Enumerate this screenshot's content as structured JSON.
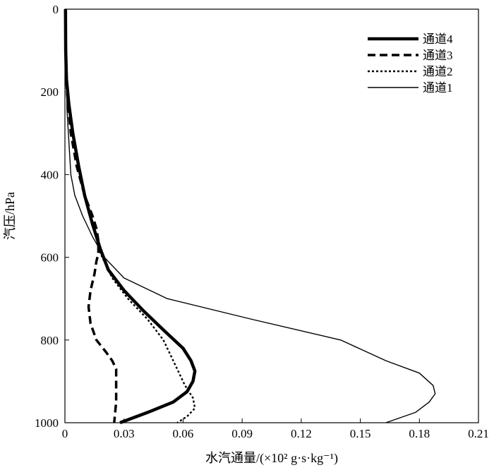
{
  "chart_data": {
    "type": "line",
    "xlabel": "水汽通量/(×10² g·s·kg⁻¹)",
    "ylabel": "汽压/hPa",
    "xlim": [
      0,
      0.21
    ],
    "ylim": [
      0,
      1000
    ],
    "y_inverted": true,
    "x_ticks": [
      "0",
      "0.03",
      "0.06",
      "0.09",
      "0.12",
      "0.15",
      "0.18",
      "0.21"
    ],
    "y_ticks": [
      "0",
      "200",
      "400",
      "600",
      "800",
      "1000"
    ],
    "grid": false,
    "legend": "top-right",
    "series": [
      {
        "name": "通道4",
        "style": "thick-solid",
        "points": [
          [
            0.0003,
            0
          ],
          [
            0.0004,
            100
          ],
          [
            0.0008,
            170
          ],
          [
            0.002,
            230
          ],
          [
            0.004,
            300
          ],
          [
            0.007,
            380
          ],
          [
            0.01,
            450
          ],
          [
            0.014,
            520
          ],
          [
            0.018,
            580
          ],
          [
            0.022,
            630
          ],
          [
            0.03,
            680
          ],
          [
            0.04,
            730
          ],
          [
            0.051,
            780
          ],
          [
            0.06,
            820
          ],
          [
            0.064,
            850
          ],
          [
            0.066,
            875
          ],
          [
            0.065,
            900
          ],
          [
            0.062,
            925
          ],
          [
            0.055,
            950
          ],
          [
            0.042,
            975
          ],
          [
            0.028,
            1000
          ]
        ]
      },
      {
        "name": "通道3",
        "style": "long-dash",
        "points": [
          [
            0.0003,
            0
          ],
          [
            0.0005,
            100
          ],
          [
            0.001,
            200
          ],
          [
            0.002,
            250
          ],
          [
            0.003,
            300
          ],
          [
            0.006,
            380
          ],
          [
            0.01,
            450
          ],
          [
            0.014,
            500
          ],
          [
            0.016,
            530
          ],
          [
            0.017,
            560
          ],
          [
            0.017,
            590
          ],
          [
            0.016,
            610
          ],
          [
            0.015,
            640
          ],
          [
            0.013,
            680
          ],
          [
            0.012,
            720
          ],
          [
            0.013,
            760
          ],
          [
            0.016,
            800
          ],
          [
            0.021,
            830
          ],
          [
            0.024,
            850
          ],
          [
            0.026,
            870
          ],
          [
            0.026,
            900
          ],
          [
            0.026,
            950
          ],
          [
            0.025,
            1000
          ]
        ]
      },
      {
        "name": "通道2",
        "style": "dotted",
        "points": [
          [
            0.0003,
            0
          ],
          [
            0.0005,
            100
          ],
          [
            0.001,
            180
          ],
          [
            0.002,
            230
          ],
          [
            0.004,
            300
          ],
          [
            0.007,
            380
          ],
          [
            0.01,
            450
          ],
          [
            0.014,
            520
          ],
          [
            0.018,
            590
          ],
          [
            0.024,
            650
          ],
          [
            0.032,
            700
          ],
          [
            0.042,
            750
          ],
          [
            0.05,
            800
          ],
          [
            0.055,
            850
          ],
          [
            0.058,
            880
          ],
          [
            0.061,
            910
          ],
          [
            0.065,
            940
          ],
          [
            0.066,
            965
          ],
          [
            0.062,
            985
          ],
          [
            0.057,
            1000
          ]
        ]
      },
      {
        "name": "通道1",
        "style": "thin-solid",
        "points": [
          [
            0.0003,
            0
          ],
          [
            0.0005,
            100
          ],
          [
            0.001,
            180
          ],
          [
            0.001,
            240
          ],
          [
            0.002,
            320
          ],
          [
            0.003,
            400
          ],
          [
            0.005,
            450
          ],
          [
            0.009,
            500
          ],
          [
            0.014,
            550
          ],
          [
            0.02,
            600
          ],
          [
            0.03,
            650
          ],
          [
            0.052,
            700
          ],
          [
            0.095,
            750
          ],
          [
            0.14,
            800
          ],
          [
            0.163,
            850
          ],
          [
            0.18,
            880
          ],
          [
            0.187,
            910
          ],
          [
            0.188,
            930
          ],
          [
            0.185,
            950
          ],
          [
            0.178,
            975
          ],
          [
            0.163,
            1000
          ]
        ]
      }
    ]
  }
}
